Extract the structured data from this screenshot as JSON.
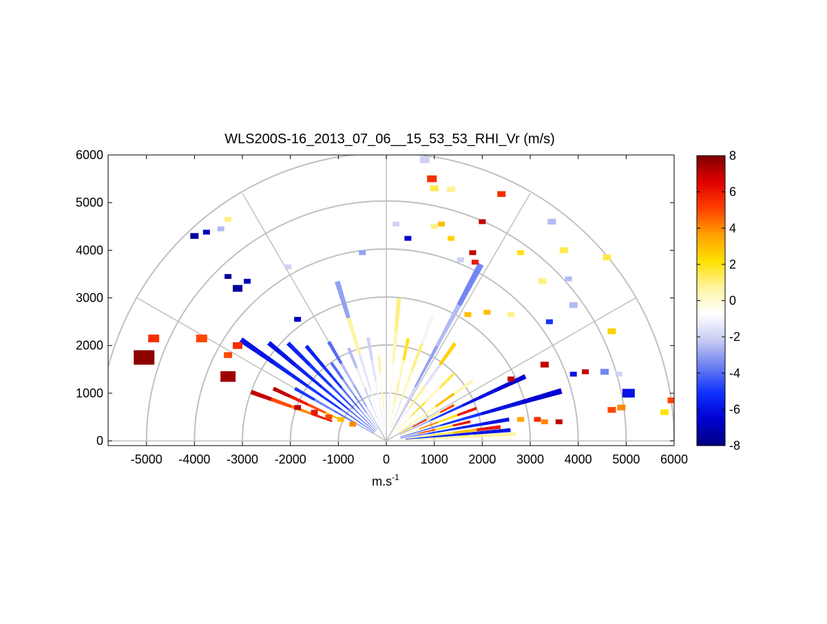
{
  "chart_data": {
    "type": "heatmap",
    "subtype": "polar RHI sector scan",
    "title": "WLS200S-16_2013_07_06__15_53_53_RHI_Vr (m/s)",
    "xlabel_base": "m.s",
    "xlabel_exponent": "-1",
    "xlim": [
      -5800,
      6000
    ],
    "ylim": [
      -100,
      6000
    ],
    "xticks": [
      -5000,
      -4000,
      -3000,
      -2000,
      -1000,
      0,
      1000,
      2000,
      3000,
      4000,
      5000,
      6000
    ],
    "yticks": [
      0,
      1000,
      2000,
      3000,
      4000,
      5000,
      6000
    ],
    "polar_grid": {
      "range_rings": [
        1000,
        2000,
        3000,
        4000,
        5000,
        6000
      ],
      "spokes_deg": [
        0,
        30,
        60,
        90,
        120,
        150,
        180
      ],
      "color": "#c0c0c0"
    },
    "colorbar": {
      "range": [
        -8,
        8
      ],
      "ticks": [
        8,
        6,
        4,
        2,
        0,
        -2,
        -4,
        -6,
        -8
      ],
      "colormap": [
        "#00007f",
        "#0000d0",
        "#1030ff",
        "#6a7ff0",
        "#c8ccf4",
        "#ffffff",
        "#fff4a0",
        "#ffe000",
        "#ffa000",
        "#ff4000",
        "#e00000",
        "#7f0000"
      ]
    },
    "beams": [
      {
        "elev_deg": 3,
        "r_start": 300,
        "r_end": 2700,
        "values": [
          0.5,
          0.7,
          0.8,
          0.6
        ]
      },
      {
        "elev_deg": 5,
        "r_start": 400,
        "r_end": 2600,
        "values": [
          -5,
          -5.5,
          -6,
          -6
        ]
      },
      {
        "elev_deg": 7,
        "r_start": 400,
        "r_end": 2400,
        "values": [
          0.8,
          1.5,
          3,
          6
        ]
      },
      {
        "elev_deg": 10,
        "r_start": 300,
        "r_end": 2600,
        "values": [
          -4,
          -5,
          -5.5,
          -6
        ]
      },
      {
        "elev_deg": 13,
        "r_start": 300,
        "r_end": 1800,
        "values": [
          -3,
          5,
          2,
          6
        ]
      },
      {
        "elev_deg": 16,
        "r_start": 300,
        "r_end": 3800,
        "values": [
          -4,
          -5,
          -6,
          -6.5
        ]
      },
      {
        "elev_deg": 20,
        "r_start": 300,
        "r_end": 2000,
        "values": [
          0.5,
          4,
          2,
          6
        ]
      },
      {
        "elev_deg": 25,
        "r_start": 300,
        "r_end": 3200,
        "values": [
          -3,
          -5,
          -6,
          -6.5
        ]
      },
      {
        "elev_deg": 28,
        "r_start": 300,
        "r_end": 1600,
        "values": [
          2,
          6,
          1,
          5
        ]
      },
      {
        "elev_deg": 35,
        "r_start": 300,
        "r_end": 2200,
        "values": [
          1,
          0.6,
          3,
          0.4
        ]
      },
      {
        "elev_deg": 45,
        "r_start": 300,
        "r_end": 2000,
        "values": [
          0.8,
          2,
          0.4,
          1.5
        ]
      },
      {
        "elev_deg": 55,
        "r_start": 300,
        "r_end": 2500,
        "values": [
          -1.2,
          1,
          -1.6,
          2.5
        ]
      },
      {
        "elev_deg": 62,
        "r_start": 300,
        "r_end": 4200,
        "values": [
          -2,
          -3,
          -2.5,
          -3.5
        ]
      },
      {
        "elev_deg": 70,
        "r_start": 300,
        "r_end": 2800,
        "values": [
          -1.5,
          0.5,
          1,
          -1
        ]
      },
      {
        "elev_deg": 78,
        "r_start": 300,
        "r_end": 2200,
        "values": [
          0.5,
          1,
          0.3,
          2
        ]
      },
      {
        "elev_deg": 85,
        "r_start": 300,
        "r_end": 3000,
        "values": [
          -1,
          -0.5,
          0.5,
          1
        ]
      },
      {
        "elev_deg": 95,
        "r_start": 300,
        "r_end": 1800,
        "values": [
          -1,
          0.4,
          -0.5,
          0.6
        ]
      },
      {
        "elev_deg": 100,
        "r_start": 300,
        "r_end": 2200,
        "values": [
          -1.3,
          -1,
          -1.5,
          -2
        ]
      },
      {
        "elev_deg": 107,
        "r_start": 300,
        "r_end": 3500,
        "values": [
          -1,
          -1.5,
          0.7,
          -3
        ]
      },
      {
        "elev_deg": 112,
        "r_start": 300,
        "r_end": 2100,
        "values": [
          -1.5,
          -2,
          -1.2,
          -2.5
        ]
      },
      {
        "elev_deg": 120,
        "r_start": 300,
        "r_end": 2400,
        "values": [
          -2,
          -3,
          -2.5,
          -4
        ]
      },
      {
        "elev_deg": 125,
        "r_start": 300,
        "r_end": 2000,
        "values": [
          -2.5,
          -3.5,
          -3,
          -4
        ]
      },
      {
        "elev_deg": 130,
        "r_start": 300,
        "r_end": 2600,
        "values": [
          -3,
          -4,
          -5,
          -5.5
        ]
      },
      {
        "elev_deg": 135,
        "r_start": 300,
        "r_end": 2900,
        "values": [
          -3.5,
          -4.5,
          -5,
          -5.5
        ]
      },
      {
        "elev_deg": 140,
        "r_start": 300,
        "r_end": 3200,
        "values": [
          -4,
          -5,
          -5.5,
          -6
        ]
      },
      {
        "elev_deg": 145,
        "r_start": 300,
        "r_end": 3700,
        "values": [
          -4,
          -5,
          -5.5,
          -6
        ]
      },
      {
        "elev_deg": 150,
        "r_start": 300,
        "r_end": 2200,
        "values": [
          -3,
          -4,
          -3.5,
          -5
        ]
      },
      {
        "elev_deg": 155,
        "r_start": 1000,
        "r_end": 2600,
        "values": [
          3,
          5,
          6,
          7
        ]
      },
      {
        "elev_deg": 160,
        "r_start": 1200,
        "r_end": 3000,
        "values": [
          6,
          4,
          5,
          7
        ]
      }
    ],
    "cells": [
      {
        "x": -5050,
        "y": 1750,
        "v": 7.8,
        "s": 30
      },
      {
        "x": -4850,
        "y": 2150,
        "v": 5.5,
        "s": 16
      },
      {
        "x": -3850,
        "y": 2150,
        "v": 5,
        "s": 16
      },
      {
        "x": -3300,
        "y": 1350,
        "v": 7.5,
        "s": 22
      },
      {
        "x": -3100,
        "y": 2000,
        "v": 5.5,
        "s": 14
      },
      {
        "x": -3300,
        "y": 1800,
        "v": 5,
        "s": 12
      },
      {
        "x": -4000,
        "y": 4300,
        "v": -7.5,
        "s": 12
      },
      {
        "x": -3750,
        "y": 4380,
        "v": -7,
        "s": 10
      },
      {
        "x": -3450,
        "y": 4450,
        "v": -2.5,
        "s": 10
      },
      {
        "x": -3300,
        "y": 4650,
        "v": 1,
        "s": 10
      },
      {
        "x": -3300,
        "y": 3450,
        "v": -7.5,
        "s": 10
      },
      {
        "x": -3100,
        "y": 3200,
        "v": -7.5,
        "s": 14
      },
      {
        "x": -2900,
        "y": 3350,
        "v": -7,
        "s": 10
      },
      {
        "x": -2050,
        "y": 3650,
        "v": -2,
        "s": 10
      },
      {
        "x": -1850,
        "y": 2550,
        "v": -7,
        "s": 10
      },
      {
        "x": -500,
        "y": 3950,
        "v": -3,
        "s": 10
      },
      {
        "x": 200,
        "y": 4550,
        "v": -2,
        "s": 10
      },
      {
        "x": 450,
        "y": 4250,
        "v": -6.5,
        "s": 10
      },
      {
        "x": 800,
        "y": 5900,
        "v": -2,
        "s": 14
      },
      {
        "x": 950,
        "y": 5500,
        "v": 5.5,
        "s": 14
      },
      {
        "x": 1000,
        "y": 5300,
        "v": 1.5,
        "s": 12
      },
      {
        "x": 1350,
        "y": 5280,
        "v": 0.8,
        "s": 12
      },
      {
        "x": 2400,
        "y": 5180,
        "v": 5.5,
        "s": 12
      },
      {
        "x": 2000,
        "y": 4600,
        "v": 7,
        "s": 10
      },
      {
        "x": 1000,
        "y": 4500,
        "v": 1,
        "s": 10
      },
      {
        "x": 1150,
        "y": 4550,
        "v": 3,
        "s": 10
      },
      {
        "x": 1350,
        "y": 4250,
        "v": 2.5,
        "s": 10
      },
      {
        "x": 1800,
        "y": 3950,
        "v": 7,
        "s": 10
      },
      {
        "x": 1850,
        "y": 3750,
        "v": 6,
        "s": 10
      },
      {
        "x": 1550,
        "y": 3800,
        "v": -2,
        "s": 10
      },
      {
        "x": 3450,
        "y": 4600,
        "v": -2.5,
        "s": 12
      },
      {
        "x": 3700,
        "y": 4000,
        "v": 1.5,
        "s": 12
      },
      {
        "x": 2800,
        "y": 3950,
        "v": 2,
        "s": 10
      },
      {
        "x": 3250,
        "y": 3350,
        "v": 1,
        "s": 12
      },
      {
        "x": 3800,
        "y": 3400,
        "v": -2.5,
        "s": 10
      },
      {
        "x": 3900,
        "y": 2850,
        "v": -2.5,
        "s": 12
      },
      {
        "x": 4600,
        "y": 3850,
        "v": 1.5,
        "s": 12
      },
      {
        "x": 4700,
        "y": 2300,
        "v": 2.5,
        "s": 12
      },
      {
        "x": 4550,
        "y": 1450,
        "v": -3.5,
        "s": 12
      },
      {
        "x": 4850,
        "y": 1400,
        "v": -2,
        "s": 10
      },
      {
        "x": 5050,
        "y": 1000,
        "v": -6,
        "s": 18
      },
      {
        "x": 4700,
        "y": 650,
        "v": 5,
        "s": 12
      },
      {
        "x": 4900,
        "y": 700,
        "v": 4,
        "s": 12
      },
      {
        "x": 5800,
        "y": 600,
        "v": 2,
        "s": 12
      },
      {
        "x": 5950,
        "y": 850,
        "v": 5,
        "s": 12
      },
      {
        "x": 3600,
        "y": 400,
        "v": 7,
        "s": 10
      },
      {
        "x": 3300,
        "y": 400,
        "v": 4,
        "s": 10
      },
      {
        "x": 3150,
        "y": 450,
        "v": 5.5,
        "s": 10
      },
      {
        "x": 2800,
        "y": 450,
        "v": 3.5,
        "s": 10
      },
      {
        "x": 3300,
        "y": 1600,
        "v": 7,
        "s": 12
      },
      {
        "x": 2600,
        "y": 1300,
        "v": 7,
        "s": 10
      },
      {
        "x": 3900,
        "y": 1400,
        "v": -6,
        "s": 10
      },
      {
        "x": 4150,
        "y": 1450,
        "v": 7,
        "s": 10
      },
      {
        "x": 3400,
        "y": 2500,
        "v": -5,
        "s": 10
      },
      {
        "x": 1700,
        "y": 2650,
        "v": 3,
        "s": 10
      },
      {
        "x": 2100,
        "y": 2700,
        "v": 3,
        "s": 10
      },
      {
        "x": 2600,
        "y": 2650,
        "v": 1,
        "s": 10
      },
      {
        "x": -1850,
        "y": 700,
        "v": 7,
        "s": 10
      },
      {
        "x": -1500,
        "y": 600,
        "v": 6,
        "s": 10
      },
      {
        "x": -1200,
        "y": 500,
        "v": 5,
        "s": 10
      },
      {
        "x": -950,
        "y": 450,
        "v": 3,
        "s": 10
      },
      {
        "x": -700,
        "y": 350,
        "v": 4,
        "s": 10
      }
    ]
  }
}
